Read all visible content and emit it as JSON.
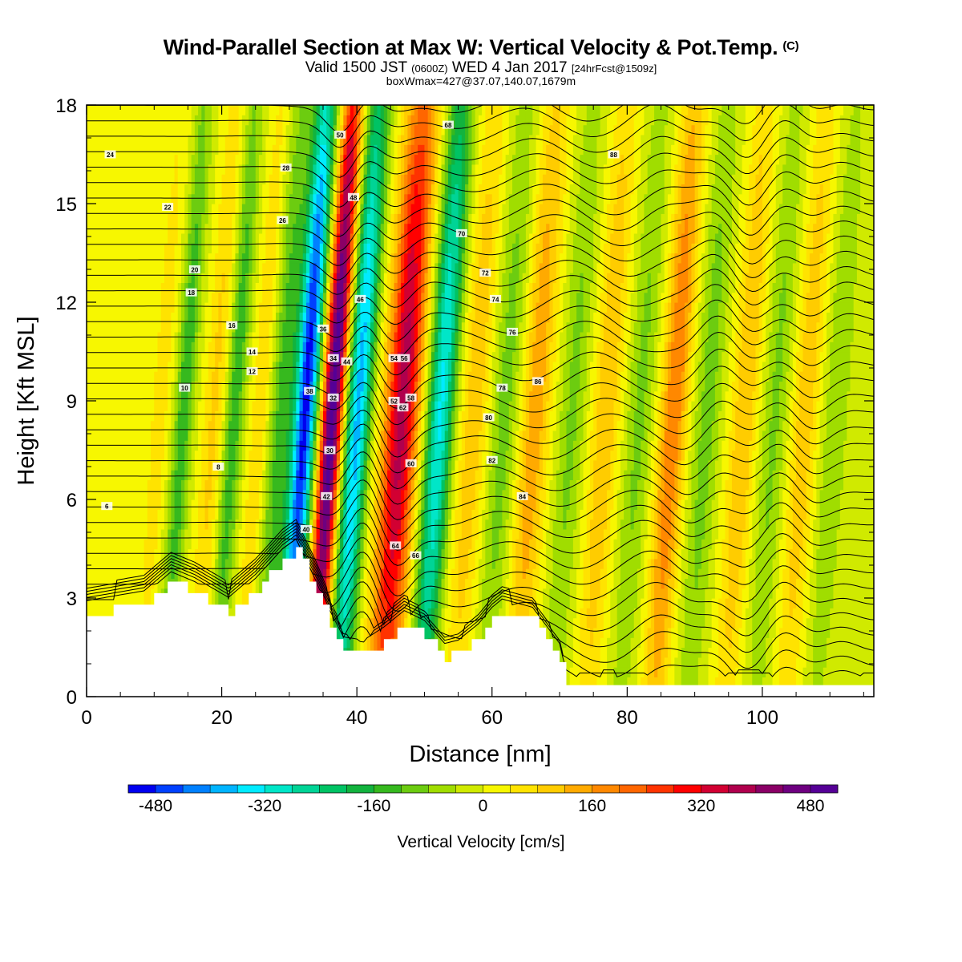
{
  "header": {
    "title": "Wind-Parallel Section at Max W: Vertical Velocity & Pot.Temp.",
    "copyright": "(C)",
    "valid_a": "Valid 1500 JST",
    "valid_b": "(0600Z)",
    "valid_c": "WED 4 Jan 2017",
    "valid_d": "[24hrFcst@1509z]",
    "box": "boxWmax=427@37.07,140.07,1679m"
  },
  "chart_data": {
    "type": "heatmap",
    "xlabel": "Distance [nm]",
    "ylabel": "Height [Kft MSL]",
    "xlim": [
      0,
      116.5
    ],
    "ylim": [
      0,
      18
    ],
    "x_ticks": [
      0,
      20,
      40,
      60,
      80,
      100
    ],
    "y_ticks": [
      0,
      3,
      6,
      9,
      12,
      15,
      18
    ],
    "colorbar": {
      "label": "Vertical Velocity [cm/s]",
      "range": [
        -520,
        520
      ],
      "step": 40,
      "tick_values": [
        -480,
        -320,
        -160,
        0,
        160,
        320,
        480
      ],
      "colors": [
        "#0000f0",
        "#0040ff",
        "#0080ff",
        "#00b4ff",
        "#00ebff",
        "#00e6c8",
        "#00d496",
        "#00c364",
        "#12b33e",
        "#36b91e",
        "#6ccc10",
        "#a0dd00",
        "#d0ea00",
        "#f7f700",
        "#ffe300",
        "#ffcc00",
        "#ffaa00",
        "#ff8800",
        "#ff6600",
        "#ff3300",
        "#ff0000",
        "#d20032",
        "#b0004d",
        "#8a0066",
        "#6e0080",
        "#550096"
      ]
    },
    "w_features": [
      {
        "x": 32.5,
        "w": -500,
        "width": 1.7
      },
      {
        "x": 36.5,
        "w": 520,
        "width": 1.6
      },
      {
        "x": 40.3,
        "w": -380,
        "width": 1.8
      },
      {
        "x": 46.8,
        "w": 380,
        "width": 2.6
      },
      {
        "x": 52.5,
        "w": -330,
        "width": 2.0
      },
      {
        "x": 57.5,
        "w": 110,
        "width": 2.2
      },
      {
        "x": 66.5,
        "w": 150,
        "width": 2.2
      },
      {
        "x": 77.0,
        "w": 120,
        "width": 2.0
      },
      {
        "x": 87.0,
        "w": 200,
        "width": 2.0
      },
      {
        "x": 97.5,
        "w": 120,
        "width": 2.0
      },
      {
        "x": 106.5,
        "w": 110,
        "width": 2.0
      },
      {
        "x": 29.0,
        "w": -140,
        "width": 1.8
      },
      {
        "x": 22.0,
        "w": -150,
        "width": 1.4
      },
      {
        "x": 14.5,
        "w": -150,
        "width": 1.4
      },
      {
        "x": 19.0,
        "w": 90,
        "width": 1.6
      },
      {
        "x": 11.0,
        "w": 60,
        "width": 1.6
      },
      {
        "x": 25.8,
        "w": 80,
        "width": 1.4
      },
      {
        "x": 62.0,
        "w": -100,
        "width": 2.2
      },
      {
        "x": 72.0,
        "w": -90,
        "width": 2.0
      },
      {
        "x": 82.0,
        "w": -90,
        "width": 2.0
      },
      {
        "x": 92.0,
        "w": -100,
        "width": 2.0
      },
      {
        "x": 102.0,
        "w": -90,
        "width": 2.0
      },
      {
        "x": 111.0,
        "w": -80,
        "width": 2.0
      }
    ],
    "terrain": [
      [
        0,
        2.5
      ],
      [
        8.5,
        2.8
      ],
      [
        12.5,
        3.5
      ],
      [
        16,
        3.2
      ],
      [
        21,
        2.6
      ],
      [
        25,
        3.3
      ],
      [
        29,
        4.2
      ],
      [
        31,
        4.5
      ],
      [
        34,
        3.2
      ],
      [
        36,
        2.2
      ],
      [
        38,
        1.4
      ],
      [
        41,
        1.3
      ],
      [
        44,
        1.7
      ],
      [
        47,
        2.2
      ],
      [
        50,
        1.9
      ],
      [
        53,
        1.2
      ],
      [
        55,
        1.3
      ],
      [
        58,
        1.8
      ],
      [
        60,
        2.3
      ],
      [
        61.5,
        2.55
      ],
      [
        66,
        2.3
      ],
      [
        70,
        1.2
      ],
      [
        71,
        0.3
      ],
      [
        116.5,
        0.3
      ]
    ],
    "theta_contour_labels": [
      "6",
      "8",
      "10",
      "12",
      "14",
      "16",
      "18",
      "20",
      "22",
      "24",
      "26",
      "28",
      "30",
      "32",
      "34",
      "36",
      "38",
      "40",
      "42",
      "44",
      "46",
      "48",
      "50",
      "52",
      "54",
      "56",
      "58",
      "60",
      "62",
      "64",
      "66",
      "68",
      "70",
      "72",
      "74",
      "76",
      "78",
      "80",
      "82",
      "84",
      "86",
      "88"
    ]
  }
}
